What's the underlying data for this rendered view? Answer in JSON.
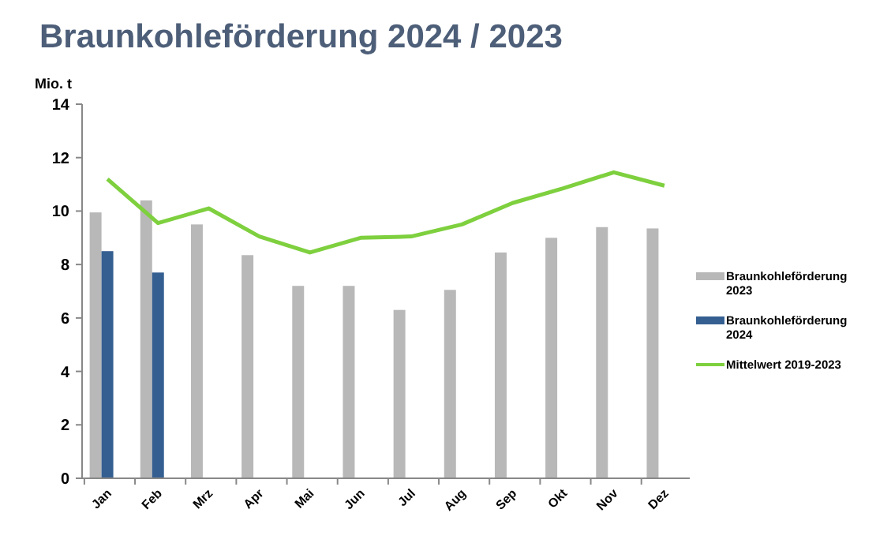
{
  "chart_data": {
    "type": "bar",
    "title": "Braunkohleförderung 2024 / 2023",
    "ylabel": "Mio. t",
    "categories": [
      "Jan",
      "Feb",
      "Mrz",
      "Apr",
      "Mai",
      "Jun",
      "Jul",
      "Aug",
      "Sep",
      "Okt",
      "Nov",
      "Dez"
    ],
    "series": [
      {
        "name": "Braunkohleförderung 2023",
        "color": "#b8b8b8",
        "values": [
          9.95,
          10.4,
          9.5,
          8.35,
          7.2,
          7.2,
          6.3,
          7.05,
          8.45,
          9.0,
          9.4,
          9.35
        ]
      },
      {
        "name": "Braunkohleförderung 2024",
        "color": "#355f91",
        "values": [
          8.5,
          7.7,
          null,
          null,
          null,
          null,
          null,
          null,
          null,
          null,
          null,
          null
        ]
      },
      {
        "name": "Mittelwert 2019-2023",
        "type": "line",
        "color": "#7ed03e",
        "values": [
          11.2,
          9.55,
          10.1,
          9.05,
          8.45,
          9.0,
          9.05,
          9.5,
          10.3,
          10.85,
          11.45,
          10.95
        ]
      }
    ],
    "ylim": [
      0,
      14
    ],
    "yticks": [
      0,
      2,
      4,
      6,
      8,
      10,
      12,
      14
    ],
    "grid": false,
    "legend": "right",
    "marker": "none"
  }
}
